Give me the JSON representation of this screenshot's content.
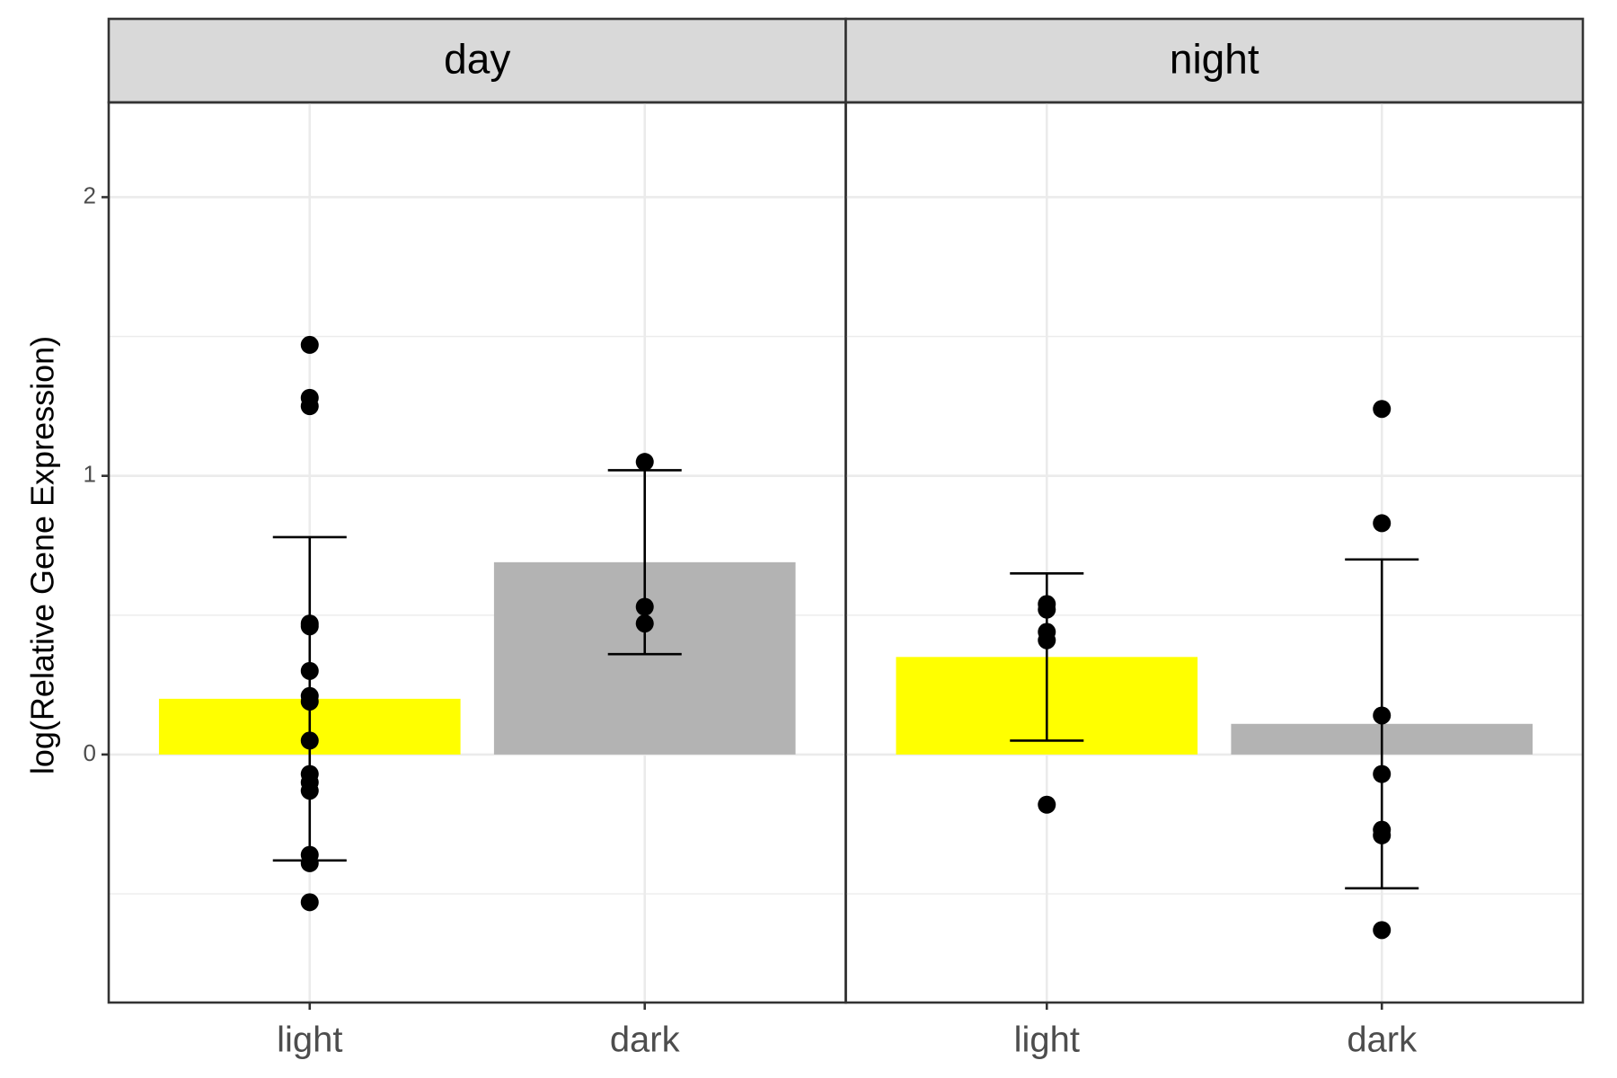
{
  "chart_data": {
    "type": "bar",
    "ylabel": "log(Relative Gene Expression)",
    "ylim": [
      -0.89,
      2.34
    ],
    "yticks": [
      0,
      1,
      2
    ],
    "minor_yticks": [
      -0.5,
      0.5,
      1.5
    ],
    "grid": true,
    "colors": [
      "#ffff00",
      "#b3b3b3"
    ],
    "point_color": "#000000",
    "facets": [
      {
        "title": "day",
        "categories": [
          "light",
          "dark"
        ],
        "values": [
          0.2,
          0.69
        ],
        "errors": [
          0.58,
          0.33
        ],
        "points": [
          [
            1.47,
            1.28,
            1.25,
            0.47,
            0.46,
            0.3,
            0.21,
            0.19,
            0.05,
            -0.07,
            -0.1,
            -0.13,
            -0.36,
            -0.39,
            -0.53
          ],
          [
            1.05,
            0.53,
            0.47
          ]
        ]
      },
      {
        "title": "night",
        "categories": [
          "light",
          "dark"
        ],
        "values": [
          0.35,
          0.11
        ],
        "errors": [
          0.3,
          0.59
        ],
        "points": [
          [
            0.54,
            0.52,
            0.44,
            0.41,
            -0.18
          ],
          [
            1.24,
            0.83,
            0.14,
            -0.07,
            -0.27,
            -0.29,
            -0.63
          ]
        ]
      }
    ]
  }
}
